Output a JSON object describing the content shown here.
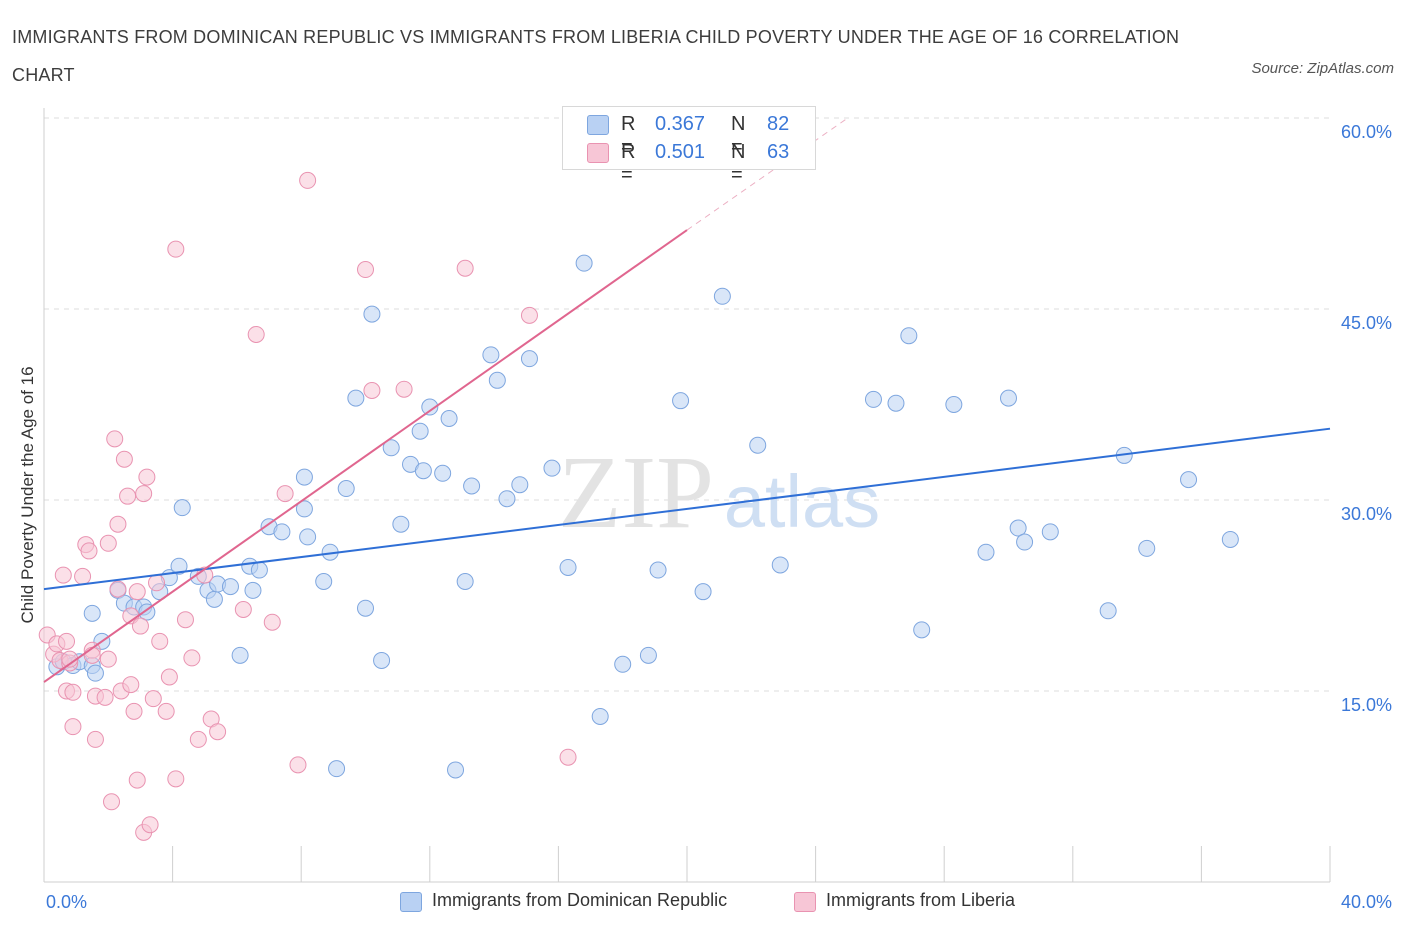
{
  "title": "IMMIGRANTS FROM DOMINICAN REPUBLIC VS IMMIGRANTS FROM LIBERIA CHILD POVERTY UNDER THE AGE OF 16 CORRELATION CHART",
  "source": "Source: ZipAtlas.com",
  "watermark": {
    "zip": "ZIP",
    "atlas": "atlas"
  },
  "colors": {
    "blue_fill": "#b9d1f3",
    "blue_stroke": "#7ea6df",
    "blue_line": "#2f6fd6",
    "pink_fill": "#f7c6d6",
    "pink_stroke": "#e993b1",
    "pink_line": "#e0668f",
    "axis_text": "#3b78d8",
    "grid": "#dcdcdc"
  },
  "legend": {
    "series1": {
      "r_label": "R =",
      "r_value": "0.367",
      "n_label": "N =",
      "n_value": "82"
    },
    "series2": {
      "r_label": "R =",
      "r_value": "0.501",
      "n_label": "N =",
      "n_value": "63"
    }
  },
  "chart_data": {
    "type": "scatter",
    "xlim": [
      0,
      40
    ],
    "ylim": [
      0,
      60
    ],
    "x_tick_labels": [
      "0.0%",
      "40.0%"
    ],
    "y_tick_labels": [
      "60.0%",
      "45.0%",
      "30.0%",
      "15.0%"
    ],
    "y_ticks": [
      60,
      45,
      30,
      15
    ],
    "ylabel": "Child Poverty Under the Age of 16",
    "xlabel": "",
    "grid": true,
    "legend_position": "top-center",
    "series": [
      {
        "name": "Immigrants from Dominican Republic",
        "color": "#7ea6df",
        "trend": {
          "x": [
            0,
            40
          ],
          "y": [
            23.0,
            35.6
          ]
        },
        "points": [
          [
            0.4,
            16.9
          ],
          [
            0.6,
            17.3
          ],
          [
            0.9,
            17.0
          ],
          [
            1.1,
            17.3
          ],
          [
            1.5,
            17.0
          ],
          [
            1.6,
            16.4
          ],
          [
            1.5,
            21.1
          ],
          [
            1.8,
            18.9
          ],
          [
            2.3,
            22.9
          ],
          [
            2.5,
            21.9
          ],
          [
            2.8,
            21.6
          ],
          [
            3.1,
            21.6
          ],
          [
            3.2,
            21.2
          ],
          [
            3.6,
            22.8
          ],
          [
            3.9,
            23.9
          ],
          [
            4.2,
            24.8
          ],
          [
            4.3,
            29.4
          ],
          [
            4.8,
            24.0
          ],
          [
            5.1,
            22.9
          ],
          [
            5.3,
            22.2
          ],
          [
            5.4,
            23.4
          ],
          [
            5.8,
            23.2
          ],
          [
            6.1,
            17.8
          ],
          [
            6.4,
            24.8
          ],
          [
            6.5,
            22.9
          ],
          [
            6.7,
            24.5
          ],
          [
            7.0,
            27.9
          ],
          [
            7.4,
            27.5
          ],
          [
            8.1,
            31.8
          ],
          [
            8.1,
            29.3
          ],
          [
            8.2,
            27.1
          ],
          [
            8.7,
            23.6
          ],
          [
            8.9,
            25.9
          ],
          [
            9.1,
            8.9
          ],
          [
            9.4,
            30.9
          ],
          [
            9.7,
            38.0
          ],
          [
            10.0,
            21.5
          ],
          [
            10.2,
            44.6
          ],
          [
            10.5,
            17.4
          ],
          [
            10.8,
            34.1
          ],
          [
            11.1,
            28.1
          ],
          [
            11.4,
            32.8
          ],
          [
            11.7,
            35.4
          ],
          [
            11.8,
            32.3
          ],
          [
            12.0,
            37.3
          ],
          [
            12.4,
            32.1
          ],
          [
            12.6,
            36.4
          ],
          [
            12.8,
            8.8
          ],
          [
            13.1,
            23.6
          ],
          [
            13.3,
            31.1
          ],
          [
            13.9,
            41.4
          ],
          [
            14.1,
            39.4
          ],
          [
            14.4,
            30.1
          ],
          [
            14.8,
            31.2
          ],
          [
            15.1,
            41.1
          ],
          [
            15.8,
            32.5
          ],
          [
            16.3,
            24.7
          ],
          [
            16.8,
            48.6
          ],
          [
            17.3,
            13.0
          ],
          [
            18.0,
            17.1
          ],
          [
            18.8,
            17.8
          ],
          [
            19.1,
            24.5
          ],
          [
            19.8,
            37.8
          ],
          [
            20.5,
            22.8
          ],
          [
            21.1,
            46.0
          ],
          [
            22.2,
            34.3
          ],
          [
            22.9,
            24.9
          ],
          [
            25.8,
            37.9
          ],
          [
            26.5,
            37.6
          ],
          [
            26.9,
            42.9
          ],
          [
            27.3,
            19.8
          ],
          [
            28.3,
            37.5
          ],
          [
            29.3,
            25.9
          ],
          [
            30.0,
            38.0
          ],
          [
            30.3,
            27.8
          ],
          [
            30.5,
            26.7
          ],
          [
            31.3,
            27.5
          ],
          [
            33.1,
            21.3
          ],
          [
            33.6,
            33.5
          ],
          [
            34.3,
            26.2
          ],
          [
            35.6,
            31.6
          ],
          [
            36.9,
            26.9
          ]
        ]
      },
      {
        "name": "Immigrants from Liberia",
        "color": "#e993b1",
        "trend": {
          "x": [
            0,
            20
          ],
          "y": [
            15.7,
            51.2
          ]
        },
        "trend_dashed": {
          "x": [
            20,
            25
          ],
          "y": [
            51.2,
            60.0
          ]
        },
        "points": [
          [
            0.1,
            19.4
          ],
          [
            0.3,
            17.9
          ],
          [
            0.4,
            18.7
          ],
          [
            0.5,
            17.4
          ],
          [
            0.7,
            18.9
          ],
          [
            0.6,
            24.1
          ],
          [
            0.8,
            17.2
          ],
          [
            0.8,
            17.5
          ],
          [
            0.7,
            15.0
          ],
          [
            0.9,
            14.9
          ],
          [
            0.9,
            12.2
          ],
          [
            1.2,
            24.0
          ],
          [
            1.3,
            26.5
          ],
          [
            1.4,
            26.0
          ],
          [
            1.5,
            18.2
          ],
          [
            1.5,
            17.8
          ],
          [
            1.6,
            14.6
          ],
          [
            1.6,
            11.2
          ],
          [
            1.9,
            14.5
          ],
          [
            2.0,
            17.5
          ],
          [
            2.0,
            26.6
          ],
          [
            2.1,
            6.3
          ],
          [
            2.2,
            34.8
          ],
          [
            2.3,
            28.1
          ],
          [
            2.3,
            23.0
          ],
          [
            2.4,
            15.0
          ],
          [
            2.5,
            33.2
          ],
          [
            2.6,
            30.3
          ],
          [
            2.7,
            20.9
          ],
          [
            2.7,
            15.5
          ],
          [
            2.8,
            13.4
          ],
          [
            2.9,
            8.0
          ],
          [
            2.9,
            22.8
          ],
          [
            3.0,
            20.1
          ],
          [
            3.1,
            3.9
          ],
          [
            3.1,
            30.5
          ],
          [
            3.2,
            31.8
          ],
          [
            3.3,
            4.5
          ],
          [
            3.4,
            14.4
          ],
          [
            3.5,
            23.5
          ],
          [
            3.6,
            18.9
          ],
          [
            3.8,
            13.4
          ],
          [
            3.9,
            16.1
          ],
          [
            4.1,
            8.1
          ],
          [
            4.4,
            20.6
          ],
          [
            4.6,
            17.6
          ],
          [
            4.8,
            11.2
          ],
          [
            4.1,
            49.7
          ],
          [
            5.0,
            24.1
          ],
          [
            5.2,
            12.8
          ],
          [
            5.4,
            11.8
          ],
          [
            6.2,
            21.4
          ],
          [
            6.6,
            43.0
          ],
          [
            7.1,
            20.4
          ],
          [
            7.5,
            30.5
          ],
          [
            7.9,
            9.2
          ],
          [
            8.2,
            55.1
          ],
          [
            10.0,
            48.1
          ],
          [
            10.2,
            38.6
          ],
          [
            11.2,
            38.7
          ],
          [
            13.1,
            48.2
          ],
          [
            15.1,
            44.5
          ],
          [
            16.3,
            9.8
          ]
        ]
      }
    ]
  },
  "bottom_legend": [
    "Immigrants from Dominican Republic",
    "Immigrants from Liberia"
  ]
}
